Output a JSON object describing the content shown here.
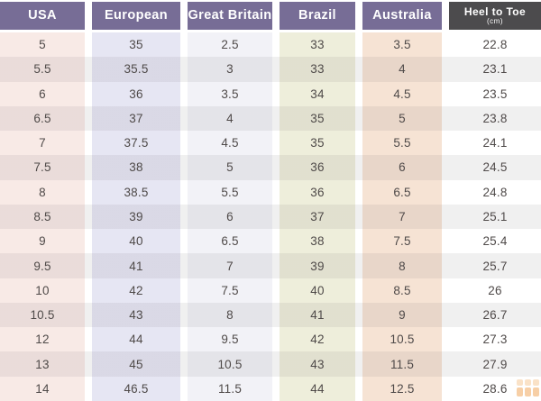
{
  "header": {
    "columns": [
      {
        "id": "usa",
        "label": "USA"
      },
      {
        "id": "european",
        "label": "European"
      },
      {
        "id": "great-britain",
        "label": "Great Britain"
      },
      {
        "id": "brazil",
        "label": "Brazil"
      },
      {
        "id": "australia",
        "label": "Australia"
      },
      {
        "id": "heel-to-toe",
        "label": "Heel to Toe",
        "sublabel": "(cm)"
      }
    ]
  },
  "chart_data": {
    "type": "table",
    "columns": [
      "USA",
      "European",
      "Great Britain",
      "Brazil",
      "Australia",
      "Heel to Toe (cm)"
    ],
    "rows": [
      [
        "5",
        "35",
        "2.5",
        "33",
        "3.5",
        "22.8"
      ],
      [
        "5.5",
        "35.5",
        "3",
        "33",
        "4",
        "23.1"
      ],
      [
        "6",
        "36",
        "3.5",
        "34",
        "4.5",
        "23.5"
      ],
      [
        "6.5",
        "37",
        "4",
        "35",
        "5",
        "23.8"
      ],
      [
        "7",
        "37.5",
        "4.5",
        "35",
        "5.5",
        "24.1"
      ],
      [
        "7.5",
        "38",
        "5",
        "36",
        "6",
        "24.5"
      ],
      [
        "8",
        "38.5",
        "5.5",
        "36",
        "6.5",
        "24.8"
      ],
      [
        "8.5",
        "39",
        "6",
        "37",
        "7",
        "25.1"
      ],
      [
        "9",
        "40",
        "6.5",
        "38",
        "7.5",
        "25.4"
      ],
      [
        "9.5",
        "41",
        "7",
        "39",
        "8",
        "25.7"
      ],
      [
        "10",
        "42",
        "7.5",
        "40",
        "8.5",
        "26"
      ],
      [
        "10.5",
        "43",
        "8",
        "41",
        "9",
        "26.7"
      ],
      [
        "12",
        "44",
        "9.5",
        "42",
        "10.5",
        "27.3"
      ],
      [
        "13",
        "45",
        "10.5",
        "43",
        "11.5",
        "27.9"
      ],
      [
        "14",
        "46.5",
        "11.5",
        "44",
        "12.5",
        "28.6"
      ]
    ],
    "layout": {
      "row_striping": true,
      "column_gutters": true
    }
  },
  "colors": {
    "header_background": "#776d96",
    "heel_header_background": "#4c4b4d",
    "header_text": "#ffffff",
    "cell_text": "#4f4a49",
    "row_stripe_overlay": "rgba(70,60,70,0.08)",
    "column_backgrounds": [
      "#f8eae6",
      "#e6e6f3",
      "#f2f2f7",
      "#eeeedb",
      "#f6e3d4",
      "#ffffff"
    ],
    "watermark_orange": "#f0a050"
  },
  "watermark": {
    "icon": "table-grid-icon"
  }
}
